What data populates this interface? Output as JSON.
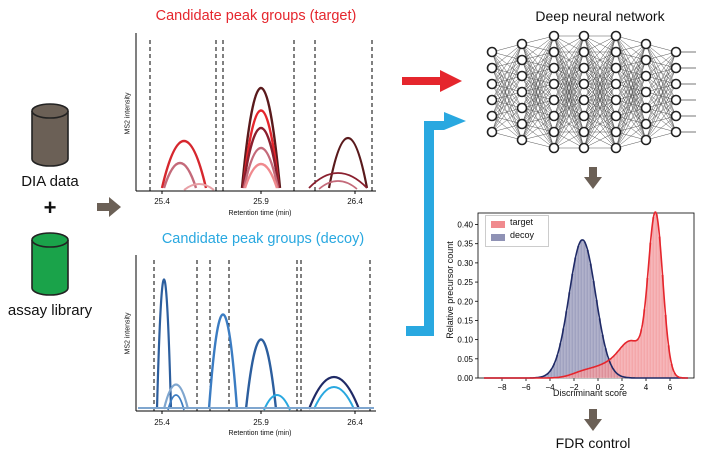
{
  "left": {
    "dia_label": "DIA data",
    "plus": "+",
    "library_label": "assay library",
    "dia_color": "#6b6056",
    "library_color": "#1aa34a"
  },
  "target_panel": {
    "title": "Candidate peak groups (target)",
    "title_color": "#e5262d",
    "ylabel": "MS2 intensity",
    "xlabel": "Retention time (min)",
    "ticks": [
      "25.4",
      "25.9",
      "26.4"
    ]
  },
  "decoy_panel": {
    "title": "Candidate peak groups (decoy)",
    "title_color": "#29a8e0",
    "ylabel": "MS2 intensity",
    "xlabel": "Retention time (min)",
    "ticks": [
      "25.4",
      "25.9",
      "26.4"
    ]
  },
  "network": {
    "title": "Deep neural network"
  },
  "histogram": {
    "ylabel": "Relative precursor count",
    "xlabel": "Discriminant score",
    "legend": [
      {
        "name": "target",
        "color": "#f08a8e"
      },
      {
        "name": "decoy",
        "color": "#8f92b5"
      }
    ],
    "yticks": [
      "0.00",
      "0.05",
      "0.10",
      "0.15",
      "0.20",
      "0.25",
      "0.30",
      "0.35",
      "0.40"
    ],
    "xticks": [
      "−8",
      "−6",
      "−4",
      "−2",
      "0",
      "2",
      "4",
      "6"
    ]
  },
  "fdr": {
    "label": "FDR control"
  },
  "arrow_colors": {
    "red": "#e5262d",
    "blue": "#29a8e0",
    "gray": "#6b6056"
  }
}
